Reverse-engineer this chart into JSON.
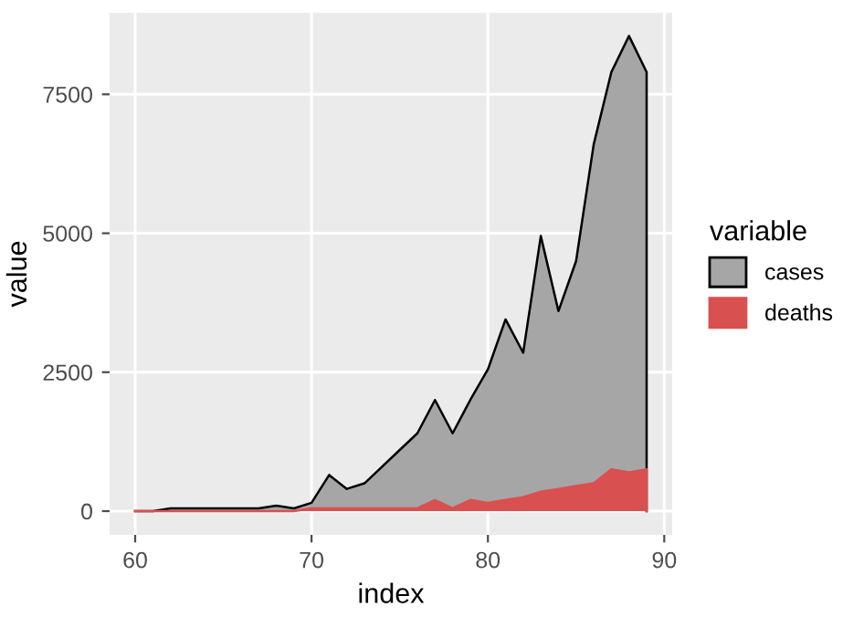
{
  "chart_data": {
    "type": "area",
    "xlabel": "index",
    "ylabel": "value",
    "legend_title": "variable",
    "legend": "right",
    "grid": true,
    "x": [
      60,
      61,
      62,
      63,
      64,
      65,
      66,
      67,
      68,
      69,
      70,
      71,
      72,
      73,
      74,
      75,
      76,
      77,
      78,
      79,
      80,
      81,
      82,
      83,
      84,
      85,
      86,
      87,
      88,
      89
    ],
    "series": [
      {
        "name": "cases",
        "color": "#a6a6a6",
        "values": [
          0,
          0,
          50,
          50,
          50,
          50,
          50,
          50,
          100,
          50,
          150,
          650,
          400,
          500,
          800,
          1100,
          1400,
          2000,
          1400,
          2000,
          2550,
          3450,
          2850,
          4950,
          3600,
          4500,
          6600,
          7900,
          8550,
          7900
        ]
      },
      {
        "name": "deaths",
        "color": "#d95050",
        "values": [
          0,
          0,
          0,
          0,
          0,
          0,
          0,
          0,
          0,
          0,
          50,
          50,
          50,
          50,
          50,
          50,
          50,
          200,
          50,
          200,
          150,
          200,
          250,
          350,
          400,
          450,
          500,
          750,
          700,
          750
        ]
      }
    ],
    "xlim": [
      58.55,
      90.45
    ],
    "ylim": [
      -427,
      8967
    ],
    "xticks": [
      60,
      70,
      80,
      90
    ],
    "yticks": [
      0,
      2500,
      5000,
      7500
    ]
  }
}
